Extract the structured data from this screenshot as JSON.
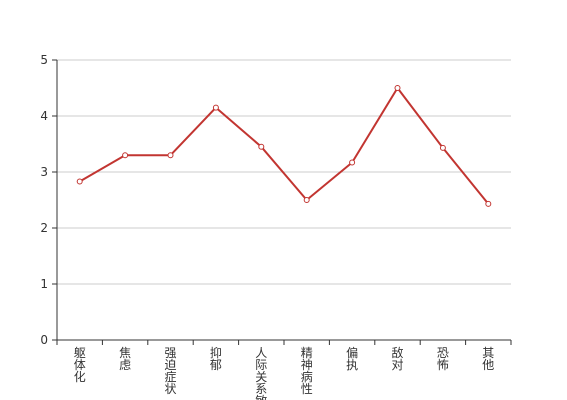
{
  "chart_data": {
    "type": "line",
    "categories": [
      "躯体化",
      "焦虑",
      "强迫症状",
      "抑郁",
      "人际关系敏感",
      "精神病性",
      "偏执",
      "敌对",
      "恐怖",
      "其他"
    ],
    "series": [
      {
        "values": [
          2.83,
          3.3,
          3.3,
          4.15,
          3.45,
          2.5,
          3.17,
          4.5,
          3.43,
          2.43
        ]
      }
    ],
    "ylim": [
      0,
      5
    ],
    "yticks": [
      0,
      1,
      2,
      3,
      4,
      5
    ],
    "grid": true,
    "legend": "none",
    "title": "",
    "xlabel": "",
    "ylabel": ""
  },
  "colors": {
    "line": "#c23531",
    "grid": "#cccccc",
    "axis": "#333333",
    "marker_fill": "#ffffff"
  }
}
